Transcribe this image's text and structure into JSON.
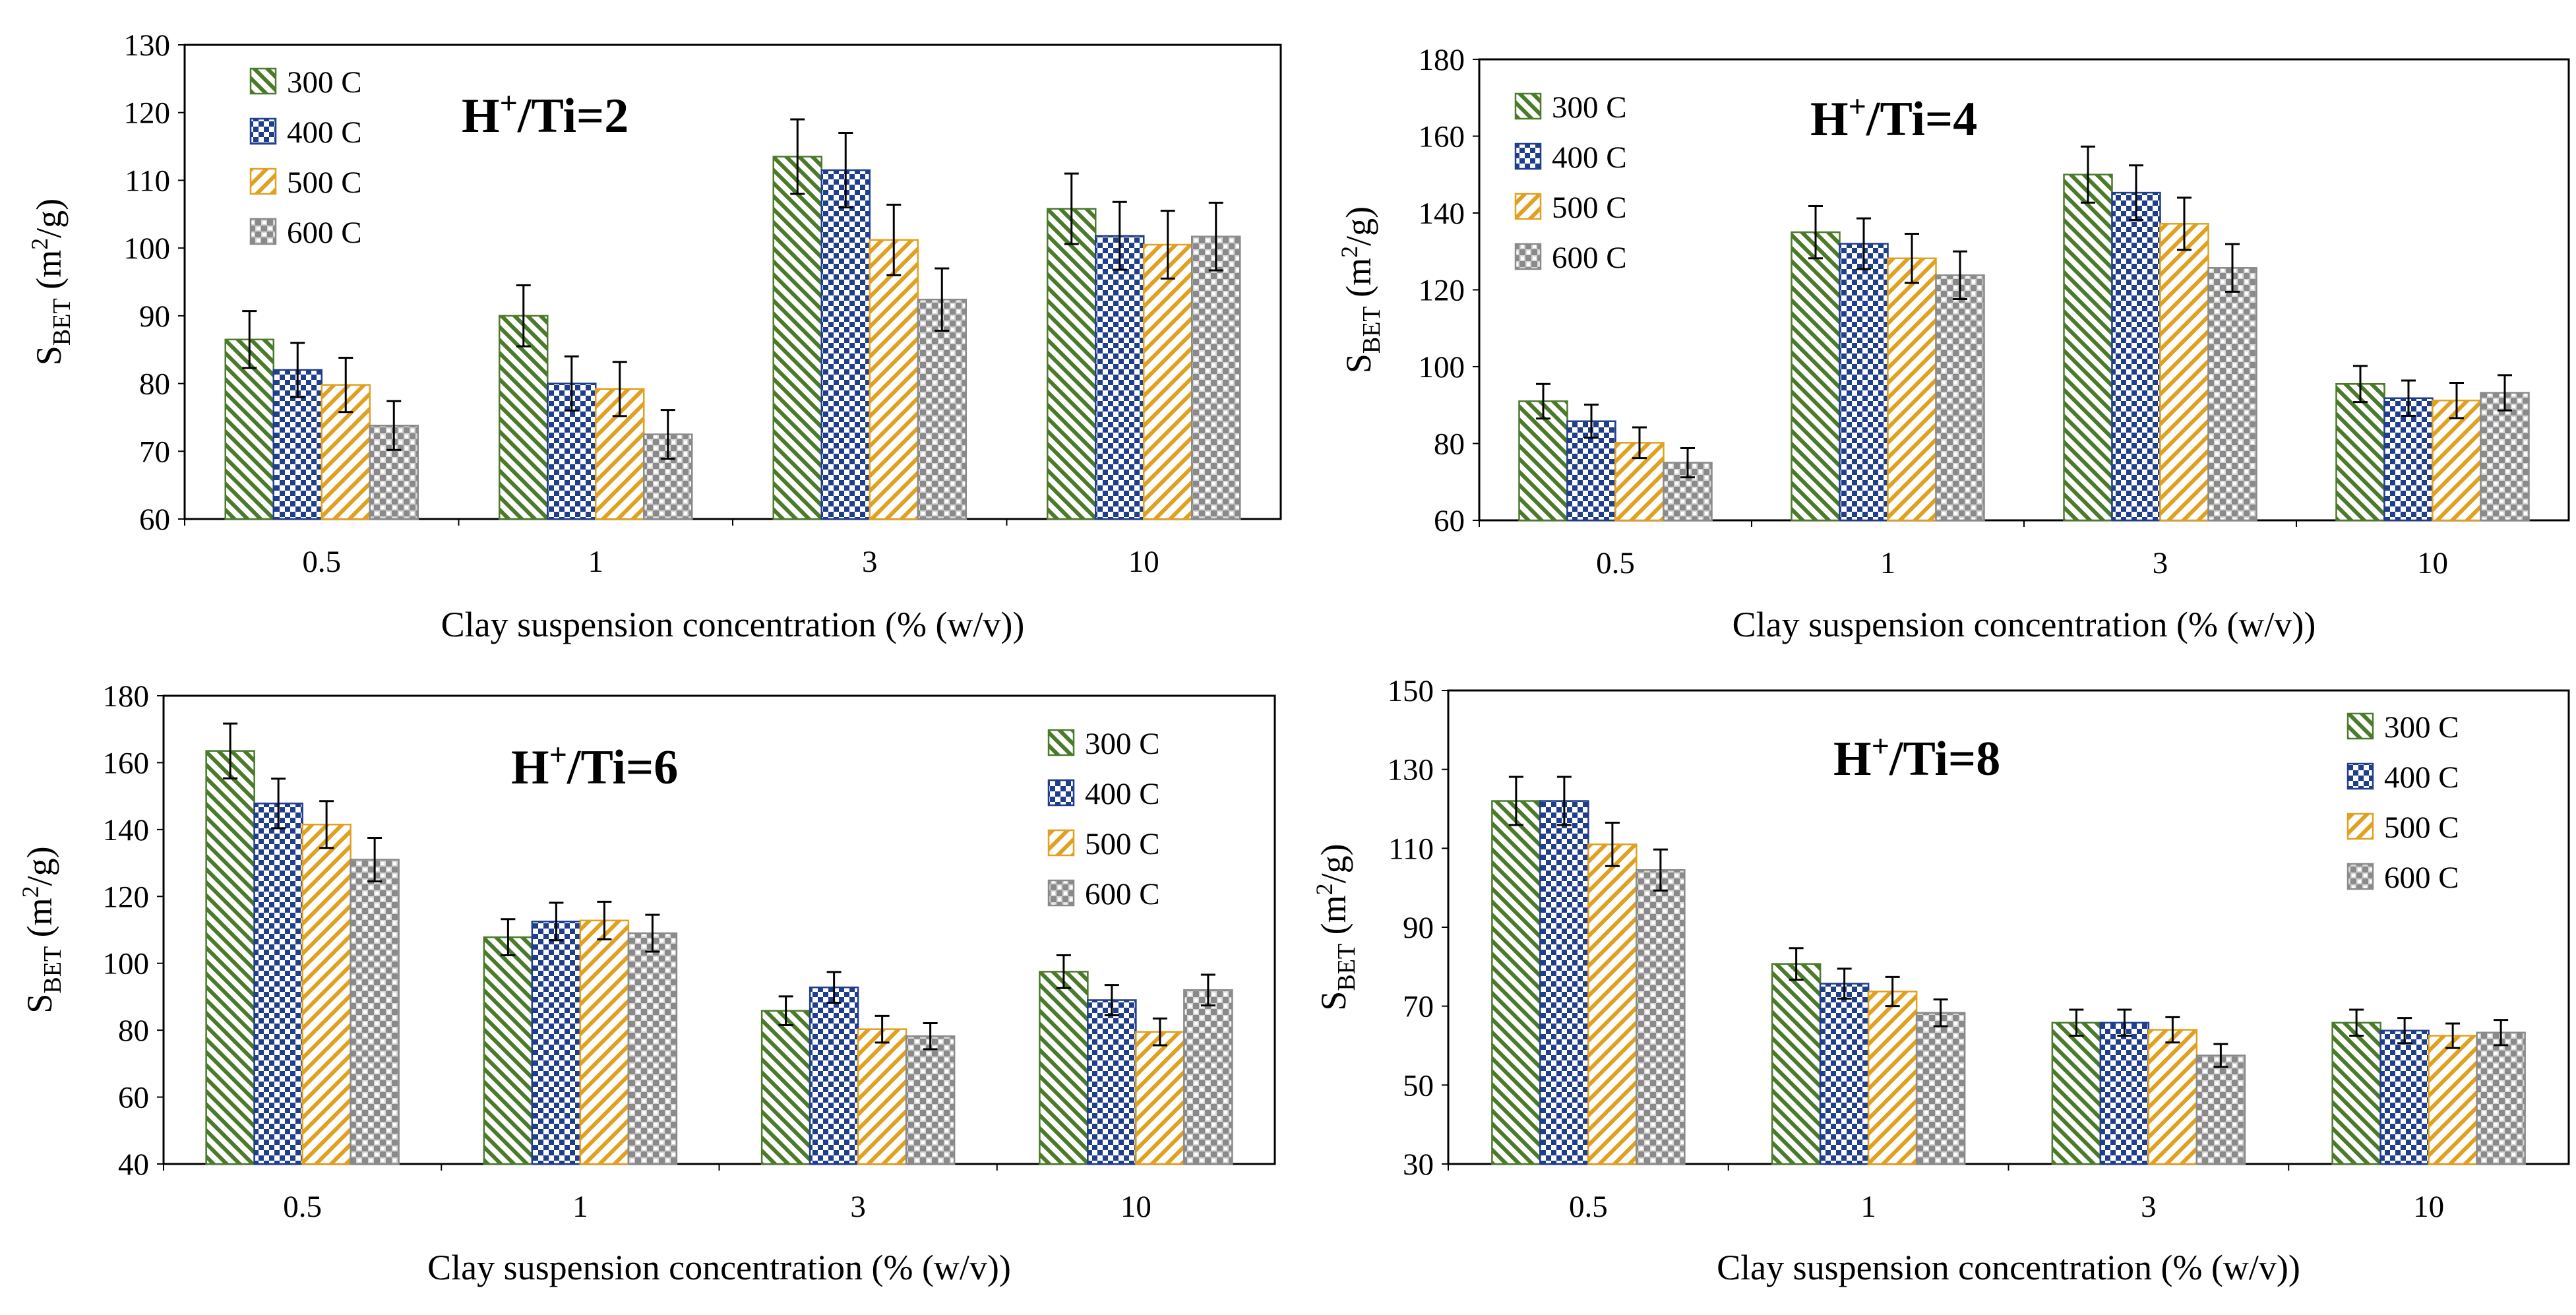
{
  "colors": {
    "300": "#4a7a2a",
    "400": "#1f3f8c",
    "500": "#e0a020",
    "600": "#8a8a8a"
  },
  "chart_data": [
    {
      "type": "bar",
      "title_main": "H",
      "title_sup": "+",
      "title_rest": "/Ti=2",
      "xlabel": "Clay suspension concentration (% (w/v))",
      "ylabel_main": "S",
      "ylabel_sub": "BET",
      "ylabel_unit_a": " (m",
      "ylabel_unit_sup": "2",
      "ylabel_unit_b": "/g)",
      "categories": [
        "0.5",
        "1",
        "3",
        "10"
      ],
      "ylim": [
        60,
        130
      ],
      "yticks": [
        "60",
        "70",
        "80",
        "90",
        "100",
        "110",
        "120",
        "130"
      ],
      "legend_position": "top-left",
      "series": [
        {
          "name": "300 C",
          "values": [
            86.5,
            90,
            113.5,
            105.8
          ],
          "errors": [
            4.2,
            4.5,
            5.5,
            5.2
          ]
        },
        {
          "name": "400 C",
          "values": [
            82,
            80,
            111.5,
            101.8
          ],
          "errors": [
            4,
            4,
            5.5,
            5
          ]
        },
        {
          "name": "500 C",
          "values": [
            79.8,
            79.2,
            101.2,
            100.5
          ],
          "errors": [
            4,
            4,
            5.2,
            5
          ]
        },
        {
          "name": "600 C",
          "values": [
            73.8,
            72.5,
            92.4,
            101.7
          ],
          "errors": [
            3.6,
            3.6,
            4.6,
            5
          ]
        }
      ]
    },
    {
      "type": "bar",
      "title_main": "H",
      "title_sup": "+",
      "title_rest": "/Ti=4",
      "xlabel": "Clay suspension concentration (% (w/v))",
      "ylabel_main": "S",
      "ylabel_sub": "BET",
      "ylabel_unit_a": " (m",
      "ylabel_unit_sup": "2",
      "ylabel_unit_b": "/g)",
      "categories": [
        "0.5",
        "1",
        "3",
        "10"
      ],
      "ylim": [
        60,
        180
      ],
      "yticks": [
        "60",
        "80",
        "100",
        "120",
        "140",
        "160",
        "180"
      ],
      "legend_position": "top-left",
      "series": [
        {
          "name": "300 C",
          "values": [
            91,
            135,
            150,
            95.5
          ],
          "errors": [
            4.5,
            6.8,
            7.3,
            4.7
          ]
        },
        {
          "name": "400 C",
          "values": [
            85.8,
            132,
            145.3,
            91.8
          ],
          "errors": [
            4.3,
            6.6,
            7.1,
            4.6
          ]
        },
        {
          "name": "500 C",
          "values": [
            80.2,
            128.2,
            137.2,
            91.2
          ],
          "errors": [
            4,
            6.4,
            6.8,
            4.6
          ]
        },
        {
          "name": "600 C",
          "values": [
            75,
            123.8,
            125.7,
            93.2
          ],
          "errors": [
            3.8,
            6.2,
            6.2,
            4.6
          ]
        }
      ]
    },
    {
      "type": "bar",
      "title_main": "H",
      "title_sup": "+",
      "title_rest": "/Ti=6",
      "xlabel": "Clay suspension concentration (% (w/v))",
      "ylabel_main": "S",
      "ylabel_sub": "BET",
      "ylabel_unit_a": " (m",
      "ylabel_unit_sup": "2",
      "ylabel_unit_b": "/g)",
      "categories": [
        "0.5",
        "1",
        "3",
        "10"
      ],
      "ylim": [
        40,
        180
      ],
      "yticks": [
        "40",
        "60",
        "80",
        "100",
        "120",
        "140",
        "160",
        "180"
      ],
      "legend_position": "top-right",
      "series": [
        {
          "name": "300 C",
          "values": [
            163.5,
            107.8,
            85.8,
            97.5
          ],
          "errors": [
            8.2,
            5.4,
            4.3,
            4.9
          ]
        },
        {
          "name": "400 C",
          "values": [
            147.8,
            112.5,
            92.8,
            89
          ],
          "errors": [
            7.4,
            5.6,
            4.6,
            4.5
          ]
        },
        {
          "name": "500 C",
          "values": [
            141.5,
            112.8,
            80.3,
            79.5
          ],
          "errors": [
            7,
            5.6,
            4,
            4
          ]
        },
        {
          "name": "600 C",
          "values": [
            131,
            109,
            78.2,
            92
          ],
          "errors": [
            6.5,
            5.5,
            3.9,
            4.6
          ]
        }
      ]
    },
    {
      "type": "bar",
      "title_main": "H",
      "title_sup": "+",
      "title_rest": "/Ti=8",
      "xlabel": "Clay suspension concentration (% (w/v))",
      "ylabel_main": "S",
      "ylabel_sub": "BET",
      "ylabel_unit_a": " (m",
      "ylabel_unit_sup": "2",
      "ylabel_unit_b": "/g)",
      "categories": [
        "0.5",
        "1",
        "3",
        "10"
      ],
      "ylim": [
        30,
        150
      ],
      "yticks": [
        "30",
        "50",
        "70",
        "90",
        "110",
        "130",
        "150"
      ],
      "legend_position": "top-right",
      "series": [
        {
          "name": "300 C",
          "values": [
            122,
            80.7,
            65.8,
            65.8
          ],
          "errors": [
            6.1,
            4,
            3.3,
            3.3
          ]
        },
        {
          "name": "400 C",
          "values": [
            122,
            75.7,
            65.8,
            63.8
          ],
          "errors": [
            6.1,
            3.8,
            3.3,
            3.2
          ]
        },
        {
          "name": "500 C",
          "values": [
            111,
            73.7,
            64,
            62.5
          ],
          "errors": [
            5.5,
            3.7,
            3.2,
            3.1
          ]
        },
        {
          "name": "600 C",
          "values": [
            104.5,
            68.3,
            57.5,
            63.3
          ],
          "errors": [
            5.2,
            3.4,
            2.9,
            3.2
          ]
        }
      ]
    }
  ]
}
